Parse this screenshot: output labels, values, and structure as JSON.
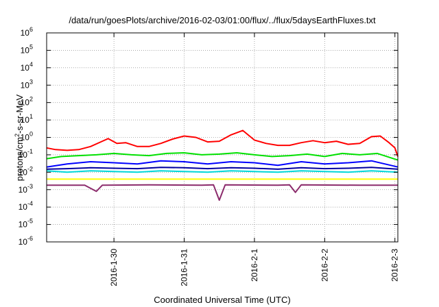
{
  "chart_data": {
    "type": "line",
    "title": "/data/run/goesPlots/archive/2016-02-03/01:00/flux/../flux/5daysEarthFluxes.txt",
    "xlabel": "Coordinated Universal Time (UTC)",
    "ylabel_parts": {
      "pre": "protons/cm",
      "sup": "2",
      "post": "-s-sr-MeV"
    },
    "y_scale": "log",
    "ylim": [
      1e-06,
      1000000.0
    ],
    "y_ticks": [
      {
        "base": "10",
        "exp": "-6"
      },
      {
        "base": "10",
        "exp": "-5"
      },
      {
        "base": "10",
        "exp": "-4"
      },
      {
        "base": "10",
        "exp": "-3"
      },
      {
        "base": "10",
        "exp": "-2"
      },
      {
        "base": "10",
        "exp": "-1"
      },
      {
        "base": "10",
        "exp": "0"
      },
      {
        "base": "10",
        "exp": "1"
      },
      {
        "base": "10",
        "exp": "2"
      },
      {
        "base": "10",
        "exp": "3"
      },
      {
        "base": "10",
        "exp": "4"
      },
      {
        "base": "10",
        "exp": "5"
      },
      {
        "base": "10",
        "exp": "6"
      }
    ],
    "xlim": [
      "2016-01-29 01:00",
      "2016-02-03 01:00"
    ],
    "x_ticks": [
      "2016-1-30",
      "2016-1-31",
      "2016-2-1",
      "2016-2-2",
      "2016-2-3"
    ],
    "grid": true,
    "series": [
      {
        "color": "#ff0000",
        "points": [
          [
            "2016-01-29 01:00",
            0.25
          ],
          [
            "2016-01-29 04:00",
            0.2
          ],
          [
            "2016-01-29 08:00",
            0.18
          ],
          [
            "2016-01-29 12:00",
            0.2
          ],
          [
            "2016-01-29 16:00",
            0.3
          ],
          [
            "2016-01-29 20:00",
            0.6
          ],
          [
            "2016-01-29 22:00",
            0.85
          ],
          [
            "2016-01-30 01:00",
            0.45
          ],
          [
            "2016-01-30 04:00",
            0.5
          ],
          [
            "2016-01-30 08:00",
            0.3
          ],
          [
            "2016-01-30 12:00",
            0.3
          ],
          [
            "2016-01-30 16:00",
            0.45
          ],
          [
            "2016-01-30 20:00",
            0.8
          ],
          [
            "2016-01-31 00:00",
            1.2
          ],
          [
            "2016-01-31 04:00",
            1.0
          ],
          [
            "2016-01-31 08:00",
            0.55
          ],
          [
            "2016-01-31 12:00",
            0.6
          ],
          [
            "2016-01-31 16:00",
            1.4
          ],
          [
            "2016-01-31 20:00",
            2.5
          ],
          [
            "2016-02-01 00:00",
            0.7
          ],
          [
            "2016-02-01 04:00",
            0.45
          ],
          [
            "2016-02-01 08:00",
            0.35
          ],
          [
            "2016-02-01 12:00",
            0.35
          ],
          [
            "2016-02-01 16:00",
            0.5
          ],
          [
            "2016-02-01 20:00",
            0.65
          ],
          [
            "2016-02-02 00:00",
            0.5
          ],
          [
            "2016-02-02 04:00",
            0.6
          ],
          [
            "2016-02-02 08:00",
            0.4
          ],
          [
            "2016-02-02 12:00",
            0.45
          ],
          [
            "2016-02-02 16:00",
            1.1
          ],
          [
            "2016-02-02 19:00",
            1.2
          ],
          [
            "2016-02-02 22:00",
            0.5
          ],
          [
            "2016-02-03 00:00",
            0.25
          ],
          [
            "2016-02-03 01:00",
            0.08
          ]
        ]
      },
      {
        "color": "#00e000",
        "points": [
          [
            "2016-01-29 01:00",
            0.06
          ],
          [
            "2016-01-29 06:00",
            0.08
          ],
          [
            "2016-01-29 12:00",
            0.09
          ],
          [
            "2016-01-29 18:00",
            0.1
          ],
          [
            "2016-01-30 00:00",
            0.12
          ],
          [
            "2016-01-30 06:00",
            0.1
          ],
          [
            "2016-01-30 12:00",
            0.09
          ],
          [
            "2016-01-30 18:00",
            0.12
          ],
          [
            "2016-01-31 00:00",
            0.13
          ],
          [
            "2016-01-31 06:00",
            0.1
          ],
          [
            "2016-01-31 12:00",
            0.11
          ],
          [
            "2016-01-31 18:00",
            0.13
          ],
          [
            "2016-02-01 00:00",
            0.1
          ],
          [
            "2016-02-01 06:00",
            0.08
          ],
          [
            "2016-02-01 12:00",
            0.09
          ],
          [
            "2016-02-01 18:00",
            0.11
          ],
          [
            "2016-02-02 00:00",
            0.08
          ],
          [
            "2016-02-02 06:00",
            0.12
          ],
          [
            "2016-02-02 12:00",
            0.1
          ],
          [
            "2016-02-02 18:00",
            0.12
          ],
          [
            "2016-02-03 01:00",
            0.05
          ]
        ]
      },
      {
        "color": "#00d8d8",
        "points": [
          [
            "2016-01-29 01:00",
            0.012
          ],
          [
            "2016-01-29 08:00",
            0.01
          ],
          [
            "2016-01-29 16:00",
            0.012
          ],
          [
            "2016-01-30 00:00",
            0.011
          ],
          [
            "2016-01-30 08:00",
            0.01
          ],
          [
            "2016-01-30 16:00",
            0.012
          ],
          [
            "2016-01-31 00:00",
            0.011
          ],
          [
            "2016-01-31 08:00",
            0.01
          ],
          [
            "2016-01-31 16:00",
            0.012
          ],
          [
            "2016-02-01 00:00",
            0.011
          ],
          [
            "2016-02-01 08:00",
            0.01
          ],
          [
            "2016-02-01 16:00",
            0.012
          ],
          [
            "2016-02-02 00:00",
            0.011
          ],
          [
            "2016-02-02 08:00",
            0.01
          ],
          [
            "2016-02-02 16:00",
            0.012
          ],
          [
            "2016-02-03 01:00",
            0.01
          ]
        ]
      },
      {
        "color": "#0000ff",
        "points": [
          [
            "2016-01-29 01:00",
            0.02
          ],
          [
            "2016-01-29 08:00",
            0.03
          ],
          [
            "2016-01-29 16:00",
            0.04
          ],
          [
            "2016-01-30 00:00",
            0.035
          ],
          [
            "2016-01-30 08:00",
            0.03
          ],
          [
            "2016-01-30 16:00",
            0.045
          ],
          [
            "2016-01-31 00:00",
            0.04
          ],
          [
            "2016-01-31 08:00",
            0.03
          ],
          [
            "2016-01-31 16:00",
            0.04
          ],
          [
            "2016-02-01 00:00",
            0.035
          ],
          [
            "2016-02-01 08:00",
            0.025
          ],
          [
            "2016-02-01 16:00",
            0.04
          ],
          [
            "2016-02-02 00:00",
            0.03
          ],
          [
            "2016-02-02 08:00",
            0.035
          ],
          [
            "2016-02-02 16:00",
            0.045
          ],
          [
            "2016-02-03 01:00",
            0.02
          ]
        ]
      },
      {
        "color": "#0000a0",
        "points": [
          [
            "2016-01-29 01:00",
            0.015
          ],
          [
            "2016-01-29 08:00",
            0.016
          ],
          [
            "2016-01-29 16:00",
            0.018
          ],
          [
            "2016-01-30 00:00",
            0.017
          ],
          [
            "2016-01-30 08:00",
            0.016
          ],
          [
            "2016-01-30 16:00",
            0.019
          ],
          [
            "2016-01-31 00:00",
            0.018
          ],
          [
            "2016-01-31 08:00",
            0.016
          ],
          [
            "2016-01-31 16:00",
            0.018
          ],
          [
            "2016-02-01 00:00",
            0.017
          ],
          [
            "2016-02-01 08:00",
            0.015
          ],
          [
            "2016-02-01 16:00",
            0.018
          ],
          [
            "2016-02-02 00:00",
            0.016
          ],
          [
            "2016-02-02 08:00",
            0.017
          ],
          [
            "2016-02-02 16:00",
            0.019
          ],
          [
            "2016-02-03 01:00",
            0.015
          ]
        ]
      },
      {
        "color": "#ffff00",
        "points": [
          [
            "2016-01-29 01:00",
            0.004
          ],
          [
            "2016-01-30 01:00",
            0.004
          ],
          [
            "2016-01-31 01:00",
            0.004
          ],
          [
            "2016-02-01 01:00",
            0.004
          ],
          [
            "2016-02-02 01:00",
            0.004
          ],
          [
            "2016-02-03 01:00",
            0.004
          ]
        ]
      },
      {
        "color": "#8b2a6b",
        "points": [
          [
            "2016-01-29 01:00",
            0.0018
          ],
          [
            "2016-01-29 14:00",
            0.0018
          ],
          [
            "2016-01-29 18:00",
            0.0008
          ],
          [
            "2016-01-29 20:00",
            0.0018
          ],
          [
            "2016-01-30 12:00",
            0.0019
          ],
          [
            "2016-01-31 06:00",
            0.0018
          ],
          [
            "2016-01-31 10:00",
            0.0019
          ],
          [
            "2016-01-31 12:00",
            0.00025
          ],
          [
            "2016-01-31 14:00",
            0.0019
          ],
          [
            "2016-02-01 08:00",
            0.0018
          ],
          [
            "2016-02-01 12:00",
            0.0019
          ],
          [
            "2016-02-01 14:00",
            0.0007
          ],
          [
            "2016-02-01 16:00",
            0.0019
          ],
          [
            "2016-02-02 12:00",
            0.0018
          ],
          [
            "2016-02-03 01:00",
            0.0018
          ]
        ]
      }
    ]
  }
}
